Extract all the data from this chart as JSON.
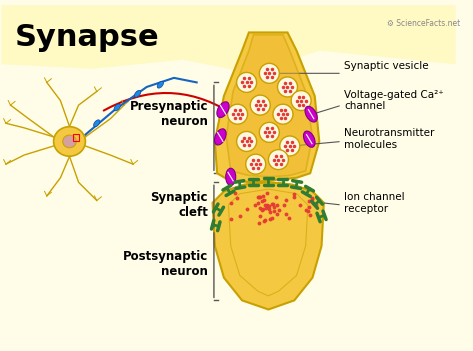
{
  "title": "Synapse",
  "bg_color": "#FFFDE7",
  "bg_wave_color": "#FFF9C4",
  "axon_terminal_color": "#F5C842",
  "axon_terminal_outline": "#C8A000",
  "dendrite_color": "#F5C842",
  "dendrite_outline": "#C8A000",
  "synaptic_cleft_color": "#FFFFFF",
  "vesicle_fill": "#FFFFFF",
  "vesicle_outline": "#C8A000",
  "vesicle_dot_color": "#E53935",
  "ca_channel_color": "#CC00CC",
  "ion_channel_color": "#2E7D32",
  "neurotransmitter_dot_color": "#E53935",
  "labels": {
    "title": "Synapse",
    "synaptic_vesicle": "Synaptic vesicle",
    "voltage_gated": "Voltage-gated Ca²⁺\nchannel",
    "neurotransmitter": "Neurotransmitter\nmolecules",
    "ion_channel": "Ion channel\nreceptor",
    "presynaptic": "Presynaptic\nneuron",
    "synaptic_cleft": "Synaptic\ncleft",
    "postsynaptic": "Postsynaptic\nneuron"
  },
  "sciencefacts_text": "ScienceFacts.net"
}
